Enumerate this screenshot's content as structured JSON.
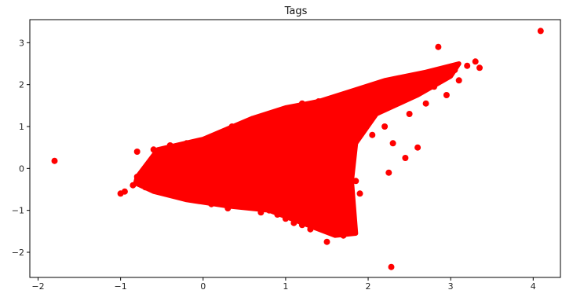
{
  "chart_data": {
    "type": "scatter",
    "title": "Tags",
    "xlabel": "",
    "ylabel": "",
    "xlim": [
      -2.1,
      4.33
    ],
    "ylim": [
      -2.6,
      3.55
    ],
    "x_ticks": [
      -2,
      -1,
      0,
      1,
      2,
      3,
      4
    ],
    "y_ticks": [
      -2,
      -1,
      0,
      1,
      2,
      3
    ],
    "x_tick_labels": [
      "−2",
      "−1",
      "0",
      "1",
      "2",
      "3",
      "4"
    ],
    "y_tick_labels": [
      "−2",
      "−1",
      "0",
      "1",
      "2",
      "3"
    ],
    "grid": false,
    "legend": "none",
    "marker_color": "#ff0000",
    "series": [
      {
        "x": [
          -1.8,
          4.09,
          2.28,
          2.85,
          3.0,
          3.3,
          3.35,
          3.1,
          2.95,
          2.7,
          2.5,
          2.2,
          2.05,
          2.3,
          2.6,
          2.45,
          2.25,
          1.9,
          1.8,
          1.7,
          1.5,
          1.3,
          1.1,
          0.9,
          0.7,
          0.5,
          0.3,
          0.1,
          -0.1,
          -0.3,
          -0.5,
          -0.7,
          -0.85,
          -0.95,
          -1.0,
          -0.8,
          -0.6,
          -0.4,
          -0.2,
          0.0,
          0.2,
          0.35,
          0.6,
          0.8,
          1.0,
          1.2,
          1.4,
          1.6,
          1.75,
          1.85,
          1.95,
          2.1,
          1.55,
          1.35,
          1.15,
          0.95,
          0.75,
          0.55,
          0.4,
          0.25,
          0.05,
          -0.15,
          -0.35,
          -0.55,
          -0.75,
          -0.65,
          -0.45,
          -0.25,
          -0.05,
          0.15,
          0.45,
          0.65,
          0.85,
          1.05,
          1.25,
          1.45,
          1.65,
          1.72,
          1.8,
          2.0,
          2.15,
          2.35,
          2.55,
          2.75,
          2.9,
          3.05,
          3.2,
          2.8,
          2.65,
          2.4,
          2.1,
          1.95,
          1.85,
          1.6,
          1.4,
          1.2,
          1.0,
          0.8,
          0.6,
          0.4,
          0.2,
          0.0,
          -0.2,
          -0.4,
          -0.6,
          -0.8
        ],
        "y": [
          0.18,
          3.28,
          -2.35,
          2.9,
          2.3,
          2.55,
          2.4,
          2.1,
          1.75,
          1.55,
          1.3,
          1.0,
          0.8,
          0.6,
          0.5,
          0.25,
          -0.1,
          -0.6,
          -1.15,
          -1.6,
          -1.75,
          -1.45,
          -1.3,
          -1.1,
          -1.05,
          -0.9,
          -0.95,
          -0.85,
          -0.7,
          -0.65,
          -0.55,
          -0.45,
          -0.4,
          -0.55,
          -0.6,
          0.4,
          0.45,
          0.55,
          0.6,
          0.65,
          0.8,
          1.0,
          1.1,
          1.25,
          1.4,
          1.55,
          1.6,
          1.7,
          1.75,
          1.8,
          1.85,
          1.95,
          1.3,
          1.2,
          1.0,
          0.9,
          0.7,
          0.5,
          0.35,
          0.2,
          0.05,
          -0.05,
          -0.15,
          -0.25,
          -0.3,
          0.1,
          0.2,
          0.3,
          0.35,
          0.4,
          0.55,
          0.65,
          0.75,
          0.85,
          0.95,
          1.05,
          1.15,
          0.6,
          0.25,
          1.5,
          1.7,
          1.85,
          2.0,
          2.15,
          2.25,
          2.35,
          2.45,
          1.95,
          1.85,
          1.7,
          1.5,
          1.35,
          -0.3,
          -0.8,
          -1.2,
          -1.35,
          -1.2,
          -1.0,
          -0.9,
          -0.75,
          -0.6,
          -0.5,
          -0.45,
          -0.4,
          -0.3,
          -0.2
        ]
      }
    ],
    "dense_region": {
      "description_in_data_units": [
        [
          -0.8,
          -0.2
        ],
        [
          -0.55,
          0.45
        ],
        [
          0.0,
          0.7
        ],
        [
          0.6,
          1.2
        ],
        [
          1.0,
          1.45
        ],
        [
          1.4,
          1.6
        ],
        [
          1.8,
          1.85
        ],
        [
          2.2,
          2.1
        ],
        [
          2.7,
          2.3
        ],
        [
          3.1,
          2.5
        ],
        [
          3.0,
          2.2
        ],
        [
          2.6,
          1.75
        ],
        [
          2.1,
          1.3
        ],
        [
          1.85,
          0.6
        ],
        [
          1.8,
          -0.3
        ],
        [
          1.85,
          -1.55
        ],
        [
          1.6,
          -1.6
        ],
        [
          1.2,
          -1.3
        ],
        [
          0.8,
          -1.0
        ],
        [
          0.3,
          -0.9
        ],
        [
          -0.2,
          -0.75
        ],
        [
          -0.6,
          -0.55
        ],
        [
          -0.82,
          -0.35
        ]
      ]
    }
  }
}
